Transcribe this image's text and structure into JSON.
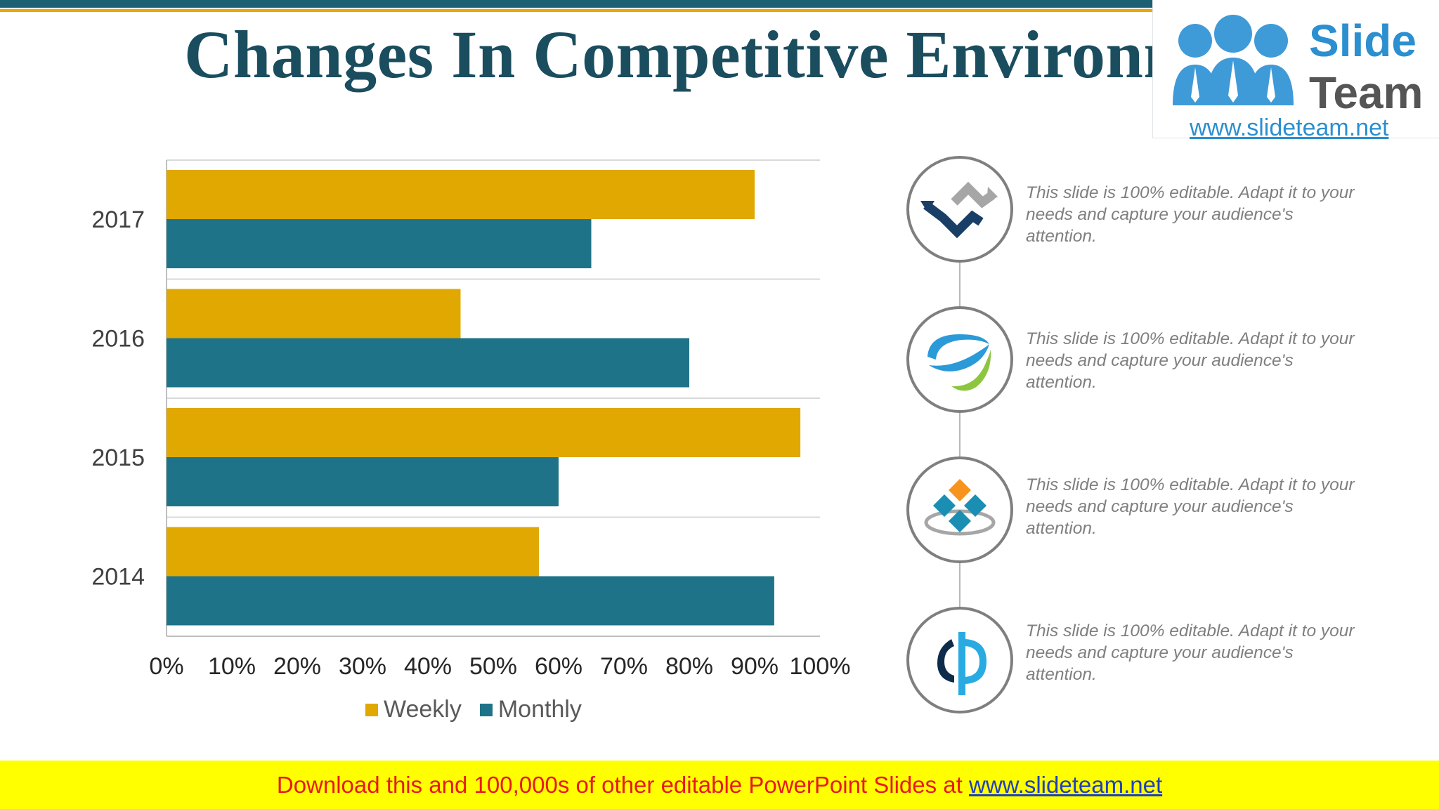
{
  "header": {
    "title": "Changes In Competitive Environment"
  },
  "logo": {
    "word1": "Slide",
    "word2": "Team",
    "url": "www.slideteam.net"
  },
  "colors": {
    "weekly": "#e0a800",
    "monthly": "#1f7388",
    "title": "#1a4d5e"
  },
  "chart_data": {
    "type": "bar",
    "orientation": "horizontal",
    "categories": [
      "2014",
      "2015",
      "2016",
      "2017"
    ],
    "series": [
      {
        "name": "Weekly",
        "values": [
          57,
          97,
          45,
          90
        ]
      },
      {
        "name": "Monthly",
        "values": [
          93,
          60,
          80,
          65
        ]
      }
    ],
    "xlim": [
      0,
      100
    ],
    "xticks": [
      "0%",
      "10%",
      "20%",
      "30%",
      "40%",
      "50%",
      "60%",
      "70%",
      "80%",
      "90%",
      "100%"
    ],
    "grid": true,
    "legend": "bottom"
  },
  "items": [
    {
      "icon": "chevron-arrows-icon",
      "text": "This slide is 100% editable. Adapt it to your needs and capture your audience's attention."
    },
    {
      "icon": "swoosh-globe-icon",
      "text": "This slide is 100% editable. Adapt it to your needs and capture your audience's attention."
    },
    {
      "icon": "diamond-cluster-icon",
      "text": "This slide is 100% editable. Adapt it to your needs and capture your audience's attention."
    },
    {
      "icon": "letter-p-icon",
      "text": "This slide is 100% editable. Adapt it to your needs and capture your audience's attention."
    }
  ],
  "footer": {
    "text": "Download this and 100,000s of other editable PowerPoint Slides at ",
    "link": "www.slideteam.net"
  }
}
